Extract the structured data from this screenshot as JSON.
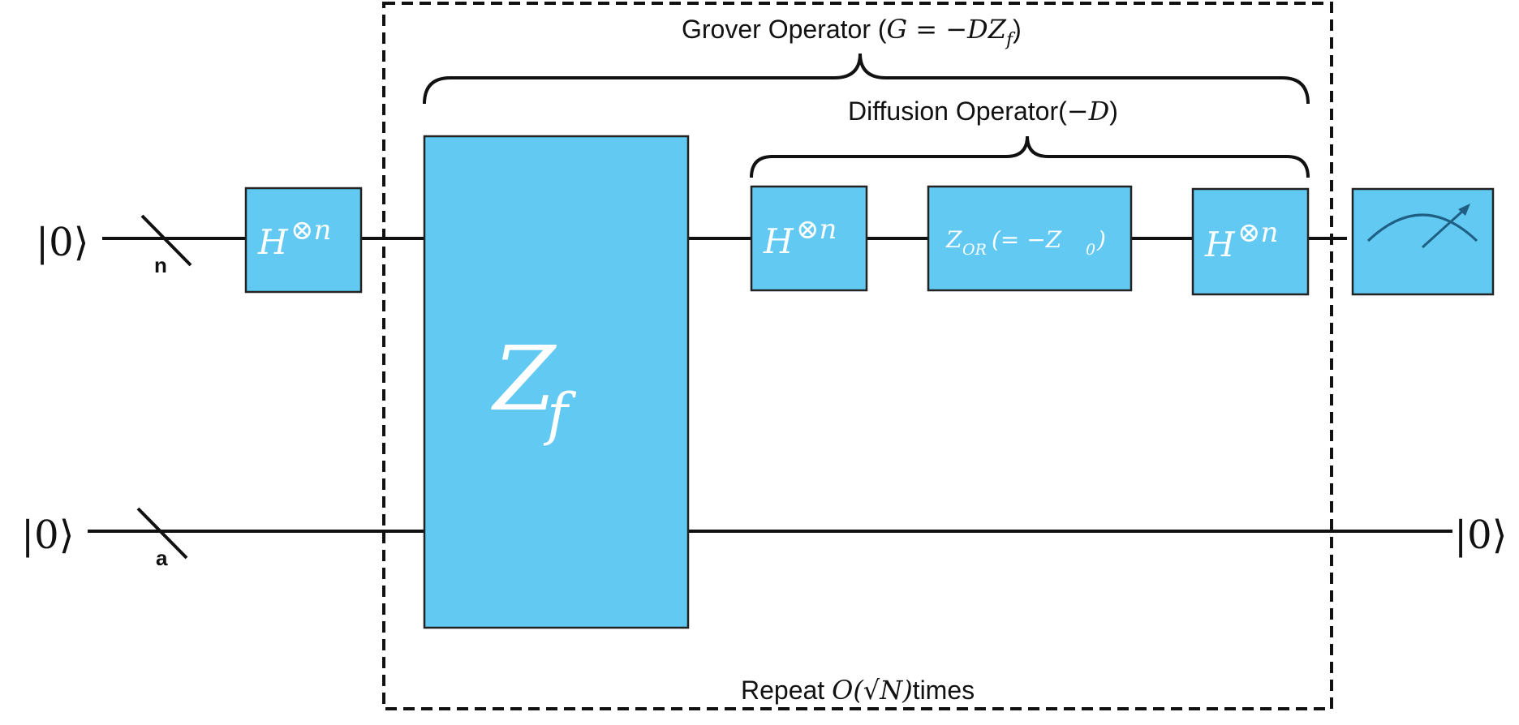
{
  "inputs": {
    "top_ket": "|0⟩",
    "bottom_ket": "|0⟩",
    "top_register": "n",
    "bottom_register": "a"
  },
  "output": {
    "bottom_ket": "|0⟩"
  },
  "gates": {
    "h1_base": "H",
    "h1_sup": "⊗n",
    "zf_base": "Z",
    "zf_sub": "f",
    "h2_base": "H",
    "h2_sup": "⊗n",
    "zor_main": "Z",
    "zor_sub": "OR",
    "zor_rest": "(= −Z",
    "zor_rest_sub": "0",
    "zor_close": ")",
    "h3_base": "H",
    "h3_sup": "⊗n"
  },
  "labels": {
    "grover_prefix": "Grover Operator (",
    "grover_math": "G = −DZ",
    "grover_math_sub": "f",
    "grover_suffix": ")",
    "diffusion_prefix": "Diffusion Operator(",
    "diffusion_math": "−D",
    "diffusion_suffix": ")",
    "repeat_prefix": "Repeat ",
    "repeat_math": "O(√N)",
    "repeat_suffix": "times"
  },
  "colors": {
    "gate_fill": "#61C9F2",
    "line": "#111111",
    "meter": "#1F5F84"
  }
}
